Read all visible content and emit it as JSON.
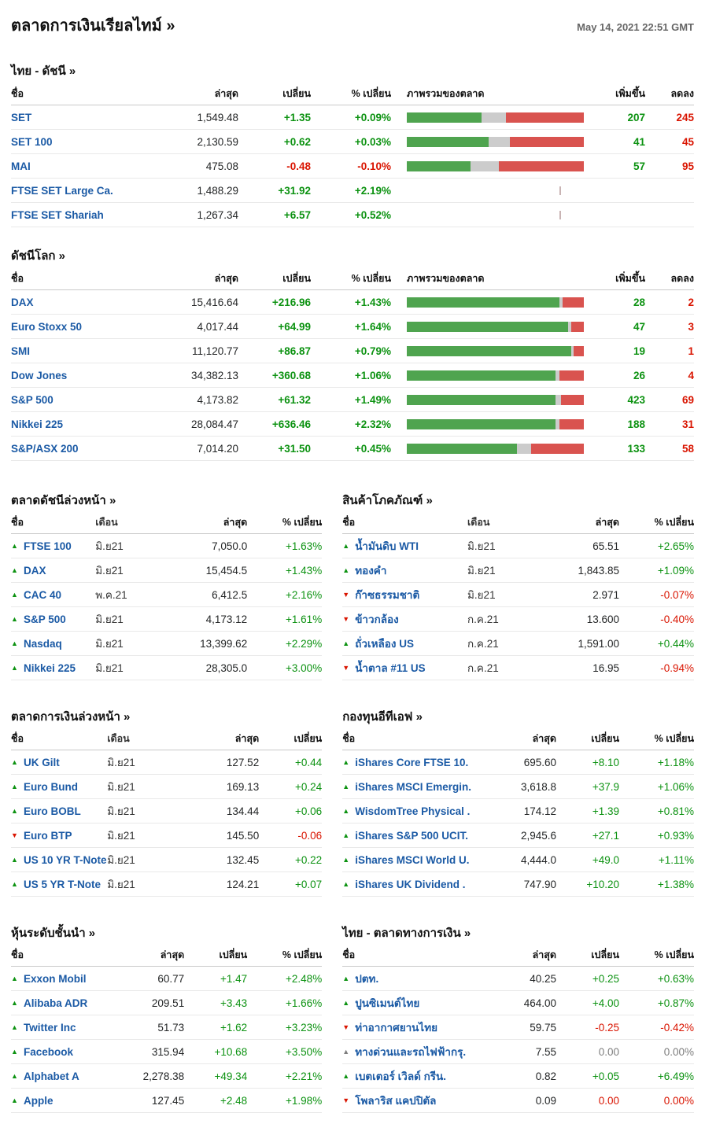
{
  "page": {
    "title": "ตลาดการเงินเรียลไทม์ »",
    "timestamp": "May 14, 2021 22:51 GMT"
  },
  "colors": {
    "link_blue": "#1b5aa5",
    "positive_green": "#0c9211",
    "negative_red": "#d91400",
    "neutral_gray": "#7d7d7d",
    "bar_green": "#4fa44f",
    "bar_gray": "#cccccc",
    "bar_red": "#d9534f"
  },
  "index_tables": [
    {
      "id": "thai-indices",
      "title": "ไทย - ดัชนี »",
      "headers": {
        "name": "ชื่อ",
        "last": "ล่าสุด",
        "change": "เปลี่ยน",
        "pct": "% เปลี่ยน",
        "overview": "ภาพรวมของตลาด",
        "adv": "เพิ่มขึ้น",
        "dec": "ลดลง"
      },
      "rows": [
        {
          "name": "SET",
          "last": "1,549.48",
          "change": "+1.35",
          "pct": "+0.09%",
          "state": "up",
          "bar": {
            "green": 42,
            "gray": 14,
            "red": 44
          },
          "adv": "207",
          "dec": "245"
        },
        {
          "name": "SET 100",
          "last": "2,130.59",
          "change": "+0.62",
          "pct": "+0.03%",
          "state": "up",
          "bar": {
            "green": 46,
            "gray": 12,
            "red": 42
          },
          "adv": "41",
          "dec": "45"
        },
        {
          "name": "MAI",
          "last": "475.08",
          "change": "-0.48",
          "pct": "-0.10%",
          "state": "down",
          "bar": {
            "green": 36,
            "gray": 16,
            "red": 48
          },
          "adv": "57",
          "dec": "95"
        },
        {
          "name": "FTSE SET Large Ca.",
          "last": "1,488.29",
          "change": "+31.92",
          "pct": "+2.19%",
          "state": "up",
          "bar": null,
          "tick": true,
          "adv": "",
          "dec": ""
        },
        {
          "name": "FTSE SET Shariah",
          "last": "1,267.34",
          "change": "+6.57",
          "pct": "+0.52%",
          "state": "up",
          "bar": null,
          "tick": true,
          "adv": "",
          "dec": ""
        }
      ]
    },
    {
      "id": "world-indices",
      "title": "ดัชนีโลก »",
      "headers": {
        "name": "ชื่อ",
        "last": "ล่าสุด",
        "change": "เปลี่ยน",
        "pct": "% เปลี่ยน",
        "overview": "ภาพรวมของตลาด",
        "adv": "เพิ่มขึ้น",
        "dec": "ลดลง"
      },
      "rows": [
        {
          "name": "DAX",
          "last": "15,416.64",
          "change": "+216.96",
          "pct": "+1.43%",
          "state": "up",
          "bar": {
            "green": 86,
            "gray": 2,
            "red": 12
          },
          "adv": "28",
          "dec": "2"
        },
        {
          "name": "Euro Stoxx 50",
          "last": "4,017.44",
          "change": "+64.99",
          "pct": "+1.64%",
          "state": "up",
          "bar": {
            "green": 91,
            "gray": 2,
            "red": 7
          },
          "adv": "47",
          "dec": "3"
        },
        {
          "name": "SMI",
          "last": "11,120.77",
          "change": "+86.87",
          "pct": "+0.79%",
          "state": "up",
          "bar": {
            "green": 93,
            "gray": 1,
            "red": 6
          },
          "adv": "19",
          "dec": "1"
        },
        {
          "name": "Dow Jones",
          "last": "34,382.13",
          "change": "+360.68",
          "pct": "+1.06%",
          "state": "up",
          "bar": {
            "green": 84,
            "gray": 2,
            "red": 14
          },
          "adv": "26",
          "dec": "4"
        },
        {
          "name": "S&P 500",
          "last": "4,173.82",
          "change": "+61.32",
          "pct": "+1.49%",
          "state": "up",
          "bar": {
            "green": 84,
            "gray": 3,
            "red": 13
          },
          "adv": "423",
          "dec": "69"
        },
        {
          "name": "Nikkei 225",
          "last": "28,084.47",
          "change": "+636.46",
          "pct": "+2.32%",
          "state": "up",
          "bar": {
            "green": 84,
            "gray": 2,
            "red": 14
          },
          "adv": "188",
          "dec": "31"
        },
        {
          "name": "S&P/ASX 200",
          "last": "7,014.20",
          "change": "+31.50",
          "pct": "+0.45%",
          "state": "up",
          "bar": {
            "green": 62,
            "gray": 8,
            "red": 30
          },
          "adv": "133",
          "dec": "58"
        }
      ]
    }
  ],
  "panels": [
    {
      "id": "index-futures",
      "title": "ตลาดดัชนีล่วงหน้า »",
      "columns": [
        "name",
        "month",
        "last",
        "pct"
      ],
      "headers": {
        "name": "ชื่อ",
        "month": "เดือน",
        "last": "ล่าสุด",
        "pct": "% เปลี่ยน"
      },
      "rows": [
        {
          "state": "up",
          "name": "FTSE 100",
          "month": "มิ.ย21",
          "last": "7,050.0",
          "pct": "+1.63%"
        },
        {
          "state": "up",
          "name": "DAX",
          "month": "มิ.ย21",
          "last": "15,454.5",
          "pct": "+1.43%"
        },
        {
          "state": "up",
          "name": "CAC 40",
          "month": "พ.ค.21",
          "last": "6,412.5",
          "pct": "+2.16%"
        },
        {
          "state": "up",
          "name": "S&P 500",
          "month": "มิ.ย21",
          "last": "4,173.12",
          "pct": "+1.61%"
        },
        {
          "state": "up",
          "name": "Nasdaq",
          "month": "มิ.ย21",
          "last": "13,399.62",
          "pct": "+2.29%"
        },
        {
          "state": "up",
          "name": "Nikkei 225",
          "month": "มิ.ย21",
          "last": "28,305.0",
          "pct": "+3.00%"
        }
      ]
    },
    {
      "id": "commodities",
      "title": "สินค้าโภคภัณฑ์ »",
      "columns": [
        "name",
        "month",
        "last",
        "pct"
      ],
      "headers": {
        "name": "ชื่อ",
        "month": "เดือน",
        "last": "ล่าสุด",
        "pct": "% เปลี่ยน"
      },
      "rows": [
        {
          "state": "up",
          "name": "น้ำมันดิบ WTI",
          "month": "มิ.ย21",
          "last": "65.51",
          "pct": "+2.65%"
        },
        {
          "state": "up",
          "name": "ทองคำ",
          "month": "มิ.ย21",
          "last": "1,843.85",
          "pct": "+1.09%"
        },
        {
          "state": "down",
          "name": "ก๊าซธรรมชาติ",
          "month": "มิ.ย21",
          "last": "2.971",
          "pct": "-0.07%"
        },
        {
          "state": "down",
          "name": "ข้าวกล้อง",
          "month": "ก.ค.21",
          "last": "13.600",
          "pct": "-0.40%"
        },
        {
          "state": "up",
          "name": "ถั่วเหลือง US",
          "month": "ก.ค.21",
          "last": "1,591.00",
          "pct": "+0.44%"
        },
        {
          "state": "down",
          "name": "น้ำตาล #11 US",
          "month": "ก.ค.21",
          "last": "16.95",
          "pct": "-0.94%"
        }
      ]
    },
    {
      "id": "financial-futures",
      "title": "ตลาดการเงินล่วงหน้า »",
      "columns": [
        "name",
        "month",
        "last",
        "change"
      ],
      "headers": {
        "name": "ชื่อ",
        "month": "เดือน",
        "last": "ล่าสุด",
        "change": "เปลี่ยน"
      },
      "rows": [
        {
          "state": "up",
          "name": "UK Gilt",
          "month": "มิ.ย21",
          "last": "127.52",
          "change": "+0.44"
        },
        {
          "state": "up",
          "name": "Euro Bund",
          "month": "มิ.ย21",
          "last": "169.13",
          "change": "+0.24"
        },
        {
          "state": "up",
          "name": "Euro BOBL",
          "month": "มิ.ย21",
          "last": "134.44",
          "change": "+0.06"
        },
        {
          "state": "down",
          "name": "Euro BTP",
          "month": "มิ.ย21",
          "last": "145.50",
          "change": "-0.06"
        },
        {
          "state": "up",
          "name": "US 10 YR T-Note",
          "month": "มิ.ย21",
          "last": "132.45",
          "change": "+0.22"
        },
        {
          "state": "up",
          "name": "US 5 YR T-Note",
          "month": "มิ.ย21",
          "last": "124.21",
          "change": "+0.07"
        }
      ]
    },
    {
      "id": "etfs",
      "title": "กองทุนอีทีเอฟ »",
      "columns": [
        "name",
        "last",
        "change",
        "pct"
      ],
      "headers": {
        "name": "ชื่อ",
        "last": "ล่าสุด",
        "change": "เปลี่ยน",
        "pct": "% เปลี่ยน"
      },
      "rows": [
        {
          "state": "up",
          "name": "iShares Core FTSE 10.",
          "last": "695.60",
          "change": "+8.10",
          "pct": "+1.18%"
        },
        {
          "state": "up",
          "name": "iShares MSCI Emergin.",
          "last": "3,618.8",
          "change": "+37.9",
          "pct": "+1.06%"
        },
        {
          "state": "up",
          "name": "WisdomTree Physical .",
          "last": "174.12",
          "change": "+1.39",
          "pct": "+0.81%"
        },
        {
          "state": "up",
          "name": "iShares S&P 500 UCIT.",
          "last": "2,945.6",
          "change": "+27.1",
          "pct": "+0.93%"
        },
        {
          "state": "up",
          "name": "iShares MSCI World U.",
          "last": "4,444.0",
          "change": "+49.0",
          "pct": "+1.11%"
        },
        {
          "state": "up",
          "name": "iShares UK Dividend .",
          "last": "747.90",
          "change": "+10.20",
          "pct": "+1.38%"
        }
      ]
    },
    {
      "id": "top-stocks",
      "title": "หุ้นระดับชั้นนำ »",
      "columns": [
        "name",
        "last",
        "change",
        "pct"
      ],
      "headers": {
        "name": "ชื่อ",
        "last": "ล่าสุด",
        "change": "เปลี่ยน",
        "pct": "% เปลี่ยน"
      },
      "rows": [
        {
          "state": "up",
          "name": "Exxon Mobil",
          "last": "60.77",
          "change": "+1.47",
          "pct": "+2.48%"
        },
        {
          "state": "up",
          "name": "Alibaba ADR",
          "last": "209.51",
          "change": "+3.43",
          "pct": "+1.66%"
        },
        {
          "state": "up",
          "name": "Twitter Inc",
          "last": "51.73",
          "change": "+1.62",
          "pct": "+3.23%"
        },
        {
          "state": "up",
          "name": "Facebook",
          "last": "315.94",
          "change": "+10.68",
          "pct": "+3.50%"
        },
        {
          "state": "up",
          "name": "Alphabet A",
          "last": "2,278.38",
          "change": "+49.34",
          "pct": "+2.21%"
        },
        {
          "state": "up",
          "name": "Apple",
          "last": "127.45",
          "change": "+2.48",
          "pct": "+1.98%"
        }
      ]
    },
    {
      "id": "thai-financial-market",
      "title": "ไทย - ตลาดทางการเงิน »",
      "columns": [
        "name",
        "last",
        "change",
        "pct"
      ],
      "headers": {
        "name": "ชื่อ",
        "last": "ล่าสุด",
        "change": "เปลี่ยน",
        "pct": "% เปลี่ยน"
      },
      "rows": [
        {
          "state": "up",
          "name": "ปตท.",
          "last": "40.25",
          "change": "+0.25",
          "pct": "+0.63%"
        },
        {
          "state": "up",
          "name": "ปูนซิเมนต์ไทย",
          "last": "464.00",
          "change": "+4.00",
          "pct": "+0.87%"
        },
        {
          "state": "down",
          "name": "ท่าอากาศยานไทย",
          "last": "59.75",
          "change": "-0.25",
          "pct": "-0.42%"
        },
        {
          "state": "flat",
          "name": "ทางด่วนและรถไฟฟ้ากรุ.",
          "last": "7.55",
          "change": "0.00",
          "pct": "0.00%"
        },
        {
          "state": "up",
          "name": "เบตเตอร์ เวิลด์ กรีน.",
          "last": "0.82",
          "change": "+0.05",
          "pct": "+6.49%"
        },
        {
          "state": "down",
          "name": "โพลาริส แคปปิตัล",
          "last": "0.09",
          "change": "0.00",
          "pct": "0.00%"
        }
      ]
    }
  ]
}
